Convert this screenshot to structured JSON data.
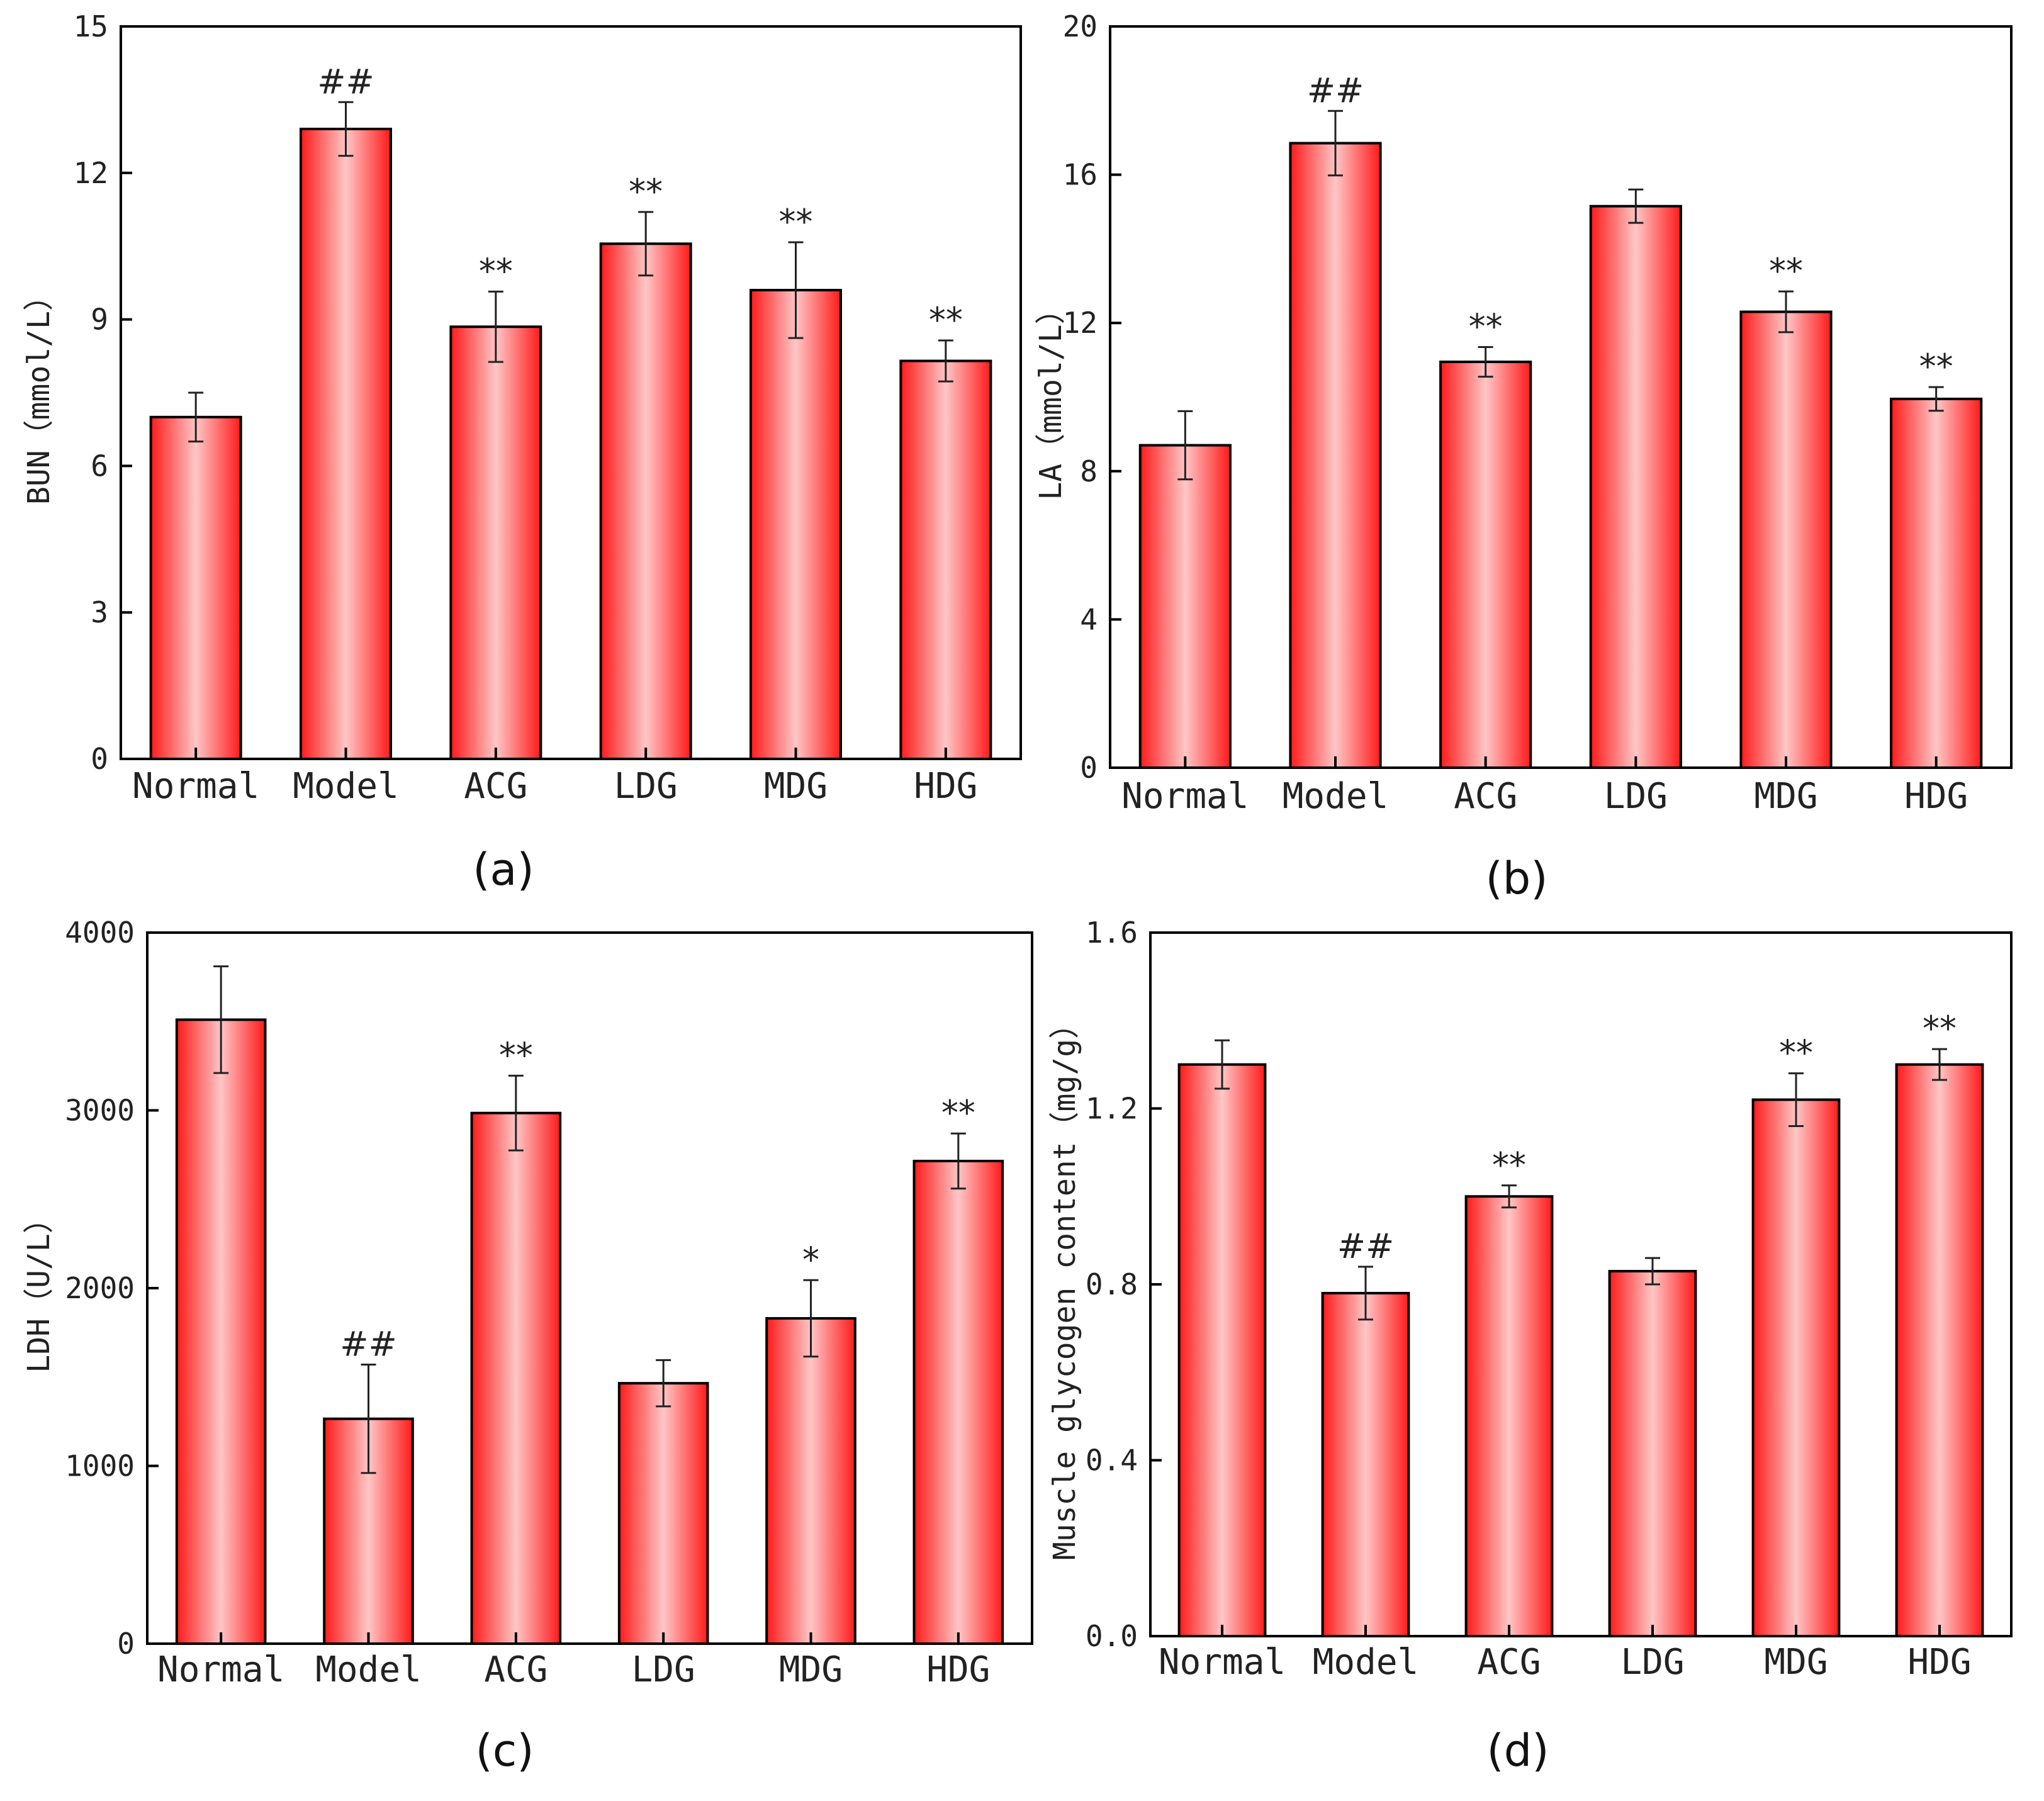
{
  "colors": {
    "bar_edge": "#ff1a1a",
    "bar_center": "#ffc6c6",
    "outline": "#000000"
  },
  "chart_data": [
    {
      "type": "bar",
      "panel": "(a)",
      "ylabel": "BUN（mmol/L）",
      "categories": [
        "Normal",
        "Model",
        "ACG",
        "LDG",
        "MDG",
        "HDG"
      ],
      "values": [
        7.0,
        12.9,
        8.85,
        10.55,
        9.6,
        8.15
      ],
      "errors": [
        0.5,
        0.55,
        0.72,
        0.65,
        0.98,
        0.42
      ],
      "significance": [
        "",
        "##",
        "**",
        "**",
        "**",
        "**"
      ],
      "ylim": [
        0,
        15
      ],
      "yticks": [
        0,
        3,
        6,
        9,
        12,
        15
      ],
      "ytick_labels": [
        "0",
        "3",
        "6",
        "9",
        "12",
        "15"
      ]
    },
    {
      "type": "bar",
      "panel": "(b)",
      "ylabel": "LA（mmol/L）",
      "categories": [
        "Normal",
        "Model",
        "ACG",
        "LDG",
        "MDG",
        "HDG"
      ],
      "values": [
        8.7,
        16.85,
        10.95,
        15.15,
        12.3,
        9.95
      ],
      "errors": [
        0.92,
        0.87,
        0.4,
        0.45,
        0.55,
        0.32
      ],
      "significance": [
        "",
        "##",
        "**",
        "",
        "**",
        "**"
      ],
      "ylim": [
        0,
        20
      ],
      "yticks": [
        0,
        4,
        8,
        12,
        16,
        20
      ],
      "ytick_labels": [
        "0",
        "4",
        "8",
        "12",
        "16",
        "20"
      ]
    },
    {
      "type": "bar",
      "panel": "(c)",
      "ylabel": "LDH（U/L）",
      "categories": [
        "Normal",
        "Model",
        "ACG",
        "LDG",
        "MDG",
        "HDG"
      ],
      "values": [
        3510,
        1265,
        2985,
        1465,
        1830,
        2715
      ],
      "errors": [
        300,
        305,
        210,
        130,
        215,
        155
      ],
      "significance": [
        "",
        "##",
        "**",
        "",
        "*",
        "**"
      ],
      "ylim": [
        0,
        4000
      ],
      "yticks": [
        0,
        1000,
        2000,
        3000,
        4000
      ],
      "ytick_labels": [
        "0",
        "1000",
        "2000",
        "3000",
        "4000"
      ]
    },
    {
      "type": "bar",
      "panel": "(d)",
      "ylabel": "Muscle glycogen content（mg/g）",
      "categories": [
        "Normal",
        "Model",
        "ACG",
        "LDG",
        "MDG",
        "HDG"
      ],
      "values": [
        1.3,
        0.78,
        1.0,
        0.83,
        1.22,
        1.3
      ],
      "errors": [
        0.055,
        0.06,
        0.025,
        0.03,
        0.06,
        0.035
      ],
      "significance": [
        "",
        "##",
        "**",
        "",
        "**",
        "**"
      ],
      "ylim": [
        0,
        1.6
      ],
      "yticks": [
        0,
        0.4,
        0.8,
        1.2,
        1.6
      ],
      "ytick_labels": [
        "0.0",
        "0.4",
        "0.8",
        "1.2",
        "1.6"
      ]
    }
  ]
}
